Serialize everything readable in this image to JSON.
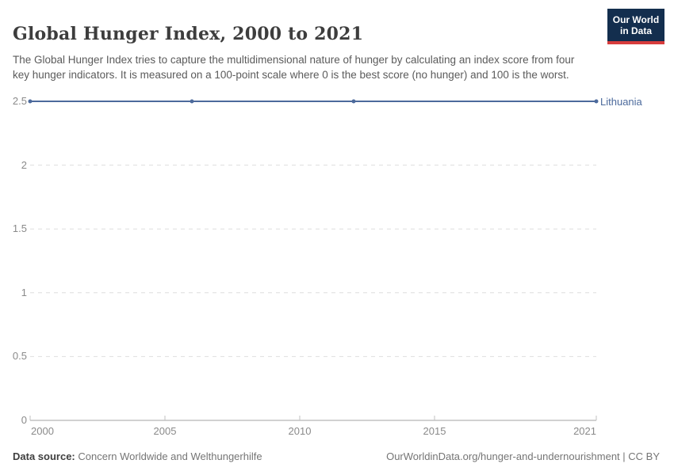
{
  "header": {
    "title": "Global Hunger Index, 2000 to 2021",
    "subtitle": "The Global Hunger Index tries to capture the multidimensional nature of hunger by calculating an index score from four key hunger indicators. It is measured on a 100-point scale where 0 is the best score (no hunger) and 100 is the worst."
  },
  "logo": {
    "line1": "Our World",
    "line2": "in Data",
    "bg_color": "#132e4e",
    "accent_color": "#d73c3c"
  },
  "chart_data": {
    "type": "line",
    "title": "Global Hunger Index, 2000 to 2021",
    "x": [
      2000,
      2006,
      2012,
      2021
    ],
    "series": [
      {
        "name": "Lithuania",
        "color": "#4C6A9C",
        "values": [
          2.5,
          2.5,
          2.5,
          2.5
        ]
      }
    ],
    "xlim": [
      2000,
      2021
    ],
    "ylim": [
      0,
      2.5
    ],
    "x_ticks": [
      "2000",
      "2005",
      "2010",
      "2015",
      "2021"
    ],
    "x_tick_values": [
      2000,
      2005,
      2010,
      2015,
      2021
    ],
    "y_ticks": [
      "0",
      "0.5",
      "1",
      "1.5",
      "2",
      "2.5"
    ],
    "y_tick_values": [
      0,
      0.5,
      1,
      1.5,
      2,
      2.5
    ],
    "grid": "dashed",
    "grid_color": "#dedede",
    "axis_color": "#a3a3a3",
    "tick_mark_color": "#c0c0c0",
    "legend_position": "right-of-line",
    "xlabel": "",
    "ylabel": ""
  },
  "footer": {
    "source_label": "Data source:",
    "source_value": "Concern Worldwide and Welthungerhilfe",
    "attribution": "OurWorldinData.org/hunger-and-undernourishment | CC BY"
  }
}
